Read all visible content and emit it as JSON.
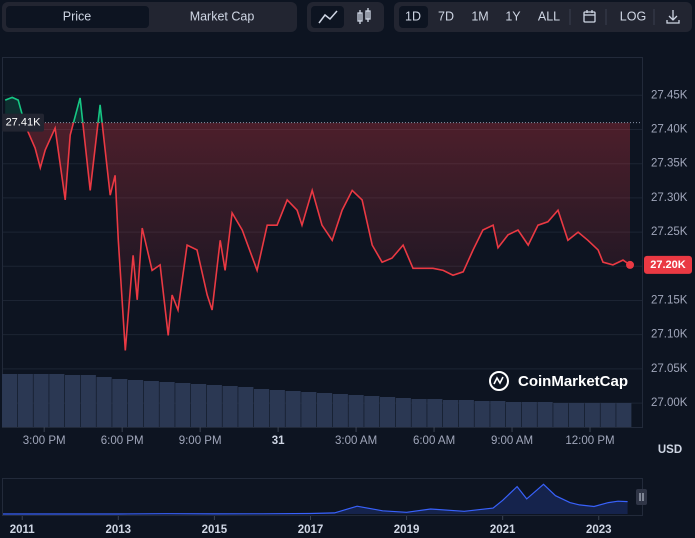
{
  "tabs": [
    "Price",
    "Market Cap"
  ],
  "ranges": [
    "1D",
    "7D",
    "1M",
    "1Y",
    "ALL"
  ],
  "log_button": "LOG",
  "currency": "USD",
  "watermark": "CoinMarketCap",
  "chart_data": {
    "type": "line",
    "x": [
      13.5,
      13.77,
      14.0,
      14.27,
      14.65,
      14.85,
      15.04,
      15.42,
      15.81,
      16.0,
      16.38,
      16.77,
      17.15,
      17.54,
      17.73,
      17.85,
      18.12,
      18.42,
      18.58,
      18.77,
      19.15,
      19.46,
      19.77,
      19.92,
      20.15,
      20.5,
      20.88,
      21.27,
      21.46,
      21.77,
      21.96,
      22.23,
      22.62,
      23.19,
      23.58,
      23.96,
      24.35,
      24.73,
      24.92,
      25.31,
      25.69,
      26.08,
      26.46,
      26.85,
      27.23,
      27.62,
      28.0,
      28.38,
      28.81,
      29.19,
      29.58,
      29.96,
      30.35,
      30.73,
      31.12,
      31.5,
      31.88,
      32.27,
      32.46,
      32.85,
      33.23,
      33.62,
      34.0,
      34.38,
      34.77,
      35.15,
      35.54,
      35.92,
      36.31,
      36.5,
      36.88,
      37.27,
      37.54
    ],
    "series": [
      {
        "name": "Price",
        "color": "#ea3943",
        "color_above": "#16c784",
        "values": [
          27443,
          27447,
          27443,
          27406,
          27373,
          27344,
          27370,
          27402,
          27297,
          27392,
          27446,
          27311,
          27436,
          27304,
          27333,
          27238,
          27077,
          27216,
          27151,
          27256,
          27194,
          27202,
          27099,
          27158,
          27136,
          27231,
          27224,
          27158,
          27136,
          27238,
          27194,
          27278,
          27253,
          27194,
          27260,
          27260,
          27297,
          27282,
          27260,
          27311,
          27260,
          27238,
          27282,
          27311,
          27297,
          27231,
          27206,
          27212,
          27231,
          27197,
          27197,
          27197,
          27194,
          27187,
          27192,
          27224,
          27253,
          27260,
          27227,
          27246,
          27253,
          27231,
          27260,
          27265,
          27282,
          27238,
          27250,
          27238,
          27224,
          27206,
          27202,
          27209,
          27202
        ]
      }
    ],
    "last_label": "27.20K",
    "baseline": {
      "value": 27410,
      "label": "27.41K"
    },
    "xlim": [
      13.3,
      38.0
    ],
    "xticks": [
      {
        "value": 15,
        "label": "3:00 PM"
      },
      {
        "value": 18,
        "label": "6:00 PM"
      },
      {
        "value": 21,
        "label": "9:00 PM"
      },
      {
        "value": 24,
        "label": "31"
      },
      {
        "value": 27,
        "label": "3:00 AM"
      },
      {
        "value": 30,
        "label": "6:00 AM"
      },
      {
        "value": 33,
        "label": "9:00 AM"
      },
      {
        "value": 36,
        "label": "12:00 PM"
      }
    ],
    "ylim": [
      26965,
      27506
    ],
    "yticks": [
      {
        "value": 27000,
        "label": "27.00K"
      },
      {
        "value": 27050,
        "label": "27.05K"
      },
      {
        "value": 27100,
        "label": "27.10K"
      },
      {
        "value": 27150,
        "label": "27.15K"
      },
      {
        "value": 27200,
        "label": "27.20K"
      },
      {
        "value": 27250,
        "label": "27.25K"
      },
      {
        "value": 27300,
        "label": "27.30K"
      },
      {
        "value": 27350,
        "label": "27.35K"
      },
      {
        "value": 27400,
        "label": "27.40K"
      },
      {
        "value": 27450,
        "label": "27.45K"
      }
    ],
    "grid": true,
    "volume": {
      "color": "#2b3853",
      "values": [
        53,
        53,
        53,
        53,
        52,
        52,
        50,
        48,
        47,
        46,
        45,
        44,
        43,
        42,
        41,
        40,
        38,
        37,
        36,
        35,
        34,
        33,
        32,
        31,
        30,
        29,
        28,
        28,
        27,
        27,
        26,
        26,
        25,
        25,
        25,
        24,
        24,
        24,
        24,
        24
      ]
    },
    "navigator": {
      "color": "#3861fb",
      "x": [
        2010.6,
        2013,
        2014,
        2015,
        2016,
        2017,
        2017.5,
        2017.97,
        2018.5,
        2019,
        2019.5,
        2020.2,
        2020.8,
        2021.0,
        2021.3,
        2021.5,
        2021.85,
        2022.1,
        2022.4,
        2022.6,
        2022.9,
        2023.2,
        2023.4,
        2023.6
      ],
      "values": [
        0,
        100,
        600,
        300,
        400,
        1000,
        2500,
        17000,
        7000,
        3700,
        11000,
        6000,
        13000,
        30000,
        60000,
        33000,
        65000,
        40000,
        25000,
        20000,
        16500,
        25000,
        28000,
        27200
      ],
      "xlim": [
        2010.6,
        2023.9
      ],
      "ylim": [
        0,
        70000
      ],
      "xticks": [
        2011,
        2013,
        2015,
        2017,
        2019,
        2021,
        2023
      ]
    }
  }
}
